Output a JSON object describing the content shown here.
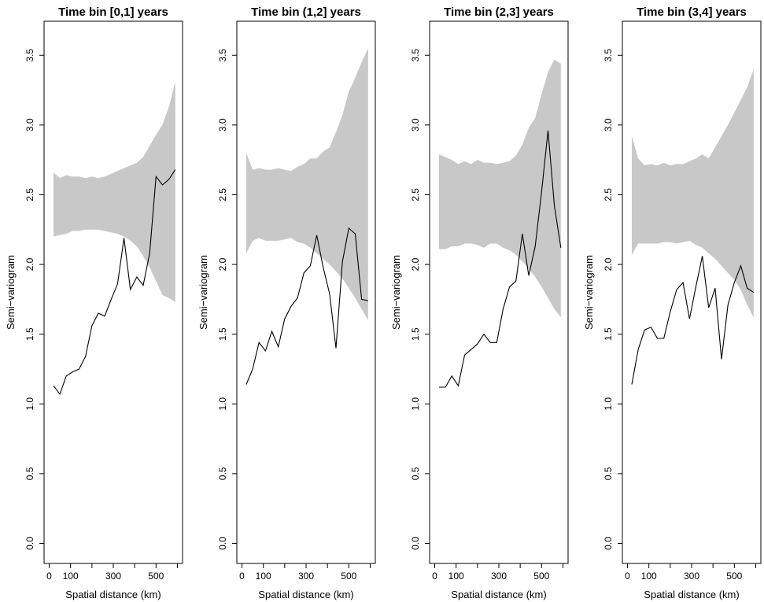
{
  "chart_data": [
    {
      "type": "line",
      "title": "Time bin [0,1] years",
      "xlabel": "Spatial distance (km)",
      "ylabel": "Semi−variogram",
      "xlim": [
        0,
        600
      ],
      "ylim": [
        0,
        3.6
      ],
      "xticks": [
        0,
        100,
        200,
        300,
        400,
        500,
        600
      ],
      "xtick_labels": [
        "0",
        "100",
        "",
        "300",
        "",
        "500",
        ""
      ],
      "yticks": [
        0,
        0.5,
        1,
        1.5,
        2,
        2.5,
        3,
        3.5
      ],
      "ytick_labels": [
        "0.0",
        "0.5",
        "1.0",
        "1.5",
        "2.0",
        "2.5",
        "3.0",
        "3.5"
      ],
      "series": [
        {
          "x": [
            20,
            50,
            80,
            110,
            140,
            170,
            200,
            230,
            260,
            290,
            320,
            350,
            380,
            410,
            440,
            470,
            500,
            530,
            560,
            590
          ],
          "y": [
            1.13,
            1.07,
            1.2,
            1.23,
            1.25,
            1.34,
            1.56,
            1.65,
            1.63,
            1.75,
            1.86,
            2.19,
            1.82,
            1.91,
            1.85,
            2.08,
            2.63,
            2.57,
            2.61,
            2.68
          ]
        }
      ],
      "envelope": {
        "x": [
          20,
          50,
          80,
          110,
          140,
          170,
          200,
          230,
          260,
          290,
          320,
          350,
          380,
          410,
          440,
          470,
          500,
          530,
          560,
          590
        ],
        "lower": [
          2.2,
          2.21,
          2.22,
          2.24,
          2.24,
          2.25,
          2.25,
          2.25,
          2.24,
          2.23,
          2.22,
          2.2,
          2.17,
          2.13,
          2.06,
          1.98,
          1.88,
          1.78,
          1.76,
          1.73
        ],
        "upper": [
          2.66,
          2.62,
          2.64,
          2.63,
          2.63,
          2.62,
          2.63,
          2.62,
          2.63,
          2.65,
          2.67,
          2.69,
          2.71,
          2.73,
          2.77,
          2.85,
          2.93,
          3.0,
          3.13,
          3.31
        ],
        "color": "#c8c8c8"
      }
    },
    {
      "type": "line",
      "title": "Time bin (1,2] years",
      "xlabel": "Spatial distance (km)",
      "ylabel": "Semi−variogram",
      "xlim": [
        0,
        600
      ],
      "ylim": [
        0,
        3.6
      ],
      "xticks": [
        0,
        100,
        200,
        300,
        400,
        500,
        600
      ],
      "xtick_labels": [
        "0",
        "100",
        "",
        "300",
        "",
        "500",
        ""
      ],
      "yticks": [
        0,
        0.5,
        1,
        1.5,
        2,
        2.5,
        3,
        3.5
      ],
      "ytick_labels": [
        "0.0",
        "0.5",
        "1.0",
        "1.5",
        "2.0",
        "2.5",
        "3.0",
        "3.5"
      ],
      "series": [
        {
          "x": [
            20,
            50,
            80,
            110,
            140,
            170,
            200,
            230,
            260,
            290,
            320,
            350,
            380,
            410,
            440,
            470,
            500,
            530,
            560,
            590
          ],
          "y": [
            1.14,
            1.25,
            1.44,
            1.38,
            1.52,
            1.41,
            1.61,
            1.7,
            1.76,
            1.94,
            1.99,
            2.21,
            1.98,
            1.79,
            1.4,
            2.02,
            2.26,
            2.22,
            1.75,
            1.74
          ]
        }
      ],
      "envelope": {
        "x": [
          20,
          50,
          80,
          110,
          140,
          170,
          200,
          230,
          260,
          290,
          320,
          350,
          380,
          410,
          440,
          470,
          500,
          530,
          560,
          590
        ],
        "lower": [
          2.08,
          2.17,
          2.19,
          2.17,
          2.17,
          2.17,
          2.18,
          2.19,
          2.16,
          2.15,
          2.12,
          2.08,
          2.04,
          2.0,
          1.95,
          1.9,
          1.83,
          1.76,
          1.68,
          1.6
        ],
        "upper": [
          2.8,
          2.68,
          2.69,
          2.68,
          2.68,
          2.69,
          2.68,
          2.67,
          2.7,
          2.72,
          2.76,
          2.76,
          2.81,
          2.84,
          2.95,
          3.07,
          3.24,
          3.34,
          3.45,
          3.55
        ],
        "color": "#c8c8c8"
      }
    },
    {
      "type": "line",
      "title": "Time bin (2,3] years",
      "xlabel": "Spatial distance (km)",
      "ylabel": "Semi−variogram",
      "xlim": [
        0,
        600
      ],
      "ylim": [
        0,
        3.6
      ],
      "xticks": [
        0,
        100,
        200,
        300,
        400,
        500,
        600
      ],
      "xtick_labels": [
        "0",
        "100",
        "",
        "300",
        "",
        "500",
        ""
      ],
      "yticks": [
        0,
        0.5,
        1,
        1.5,
        2,
        2.5,
        3,
        3.5
      ],
      "ytick_labels": [
        "0.0",
        "0.5",
        "1.0",
        "1.5",
        "2.0",
        "2.5",
        "3.0",
        "3.5"
      ],
      "series": [
        {
          "x": [
            20,
            50,
            80,
            110,
            140,
            170,
            200,
            230,
            260,
            290,
            320,
            350,
            380,
            410,
            440,
            470,
            500,
            530,
            560,
            590
          ],
          "y": [
            1.12,
            1.12,
            1.2,
            1.13,
            1.35,
            1.39,
            1.43,
            1.5,
            1.44,
            1.44,
            1.68,
            1.84,
            1.88,
            2.22,
            1.92,
            2.13,
            2.52,
            2.96,
            2.42,
            2.12
          ]
        }
      ],
      "envelope": {
        "x": [
          20,
          50,
          80,
          110,
          140,
          170,
          200,
          230,
          260,
          290,
          320,
          350,
          380,
          410,
          440,
          470,
          500,
          530,
          560,
          590
        ],
        "lower": [
          2.11,
          2.11,
          2.13,
          2.13,
          2.15,
          2.15,
          2.14,
          2.12,
          2.15,
          2.15,
          2.12,
          2.1,
          2.07,
          2.02,
          1.97,
          1.91,
          1.84,
          1.76,
          1.68,
          1.62
        ],
        "upper": [
          2.79,
          2.77,
          2.75,
          2.72,
          2.74,
          2.72,
          2.75,
          2.73,
          2.73,
          2.72,
          2.73,
          2.74,
          2.78,
          2.86,
          2.98,
          3.05,
          3.22,
          3.38,
          3.47,
          3.44
        ],
        "color": "#c8c8c8"
      }
    },
    {
      "type": "line",
      "title": "Time bin (3,4] years",
      "xlabel": "Spatial distance (km)",
      "ylabel": "Semi−variogram",
      "xlim": [
        0,
        600
      ],
      "ylim": [
        0,
        3.6
      ],
      "xticks": [
        0,
        100,
        200,
        300,
        400,
        500,
        600
      ],
      "xtick_labels": [
        "0",
        "100",
        "",
        "300",
        "",
        "500",
        ""
      ],
      "yticks": [
        0,
        0.5,
        1,
        1.5,
        2,
        2.5,
        3,
        3.5
      ],
      "ytick_labels": [
        "0.0",
        "0.5",
        "1.0",
        "1.5",
        "2.0",
        "2.5",
        "3.0",
        "3.5"
      ],
      "series": [
        {
          "x": [
            20,
            50,
            80,
            110,
            140,
            170,
            200,
            230,
            260,
            290,
            320,
            350,
            380,
            410,
            440,
            470,
            500,
            530,
            560,
            590
          ],
          "y": [
            1.14,
            1.39,
            1.53,
            1.55,
            1.47,
            1.47,
            1.66,
            1.82,
            1.87,
            1.61,
            1.84,
            2.06,
            1.69,
            1.83,
            1.32,
            1.71,
            1.87,
            1.99,
            1.83,
            1.8
          ]
        }
      ],
      "envelope": {
        "x": [
          20,
          50,
          80,
          110,
          140,
          170,
          200,
          230,
          260,
          290,
          320,
          350,
          380,
          410,
          440,
          470,
          500,
          530,
          560,
          590
        ],
        "lower": [
          2.07,
          2.15,
          2.15,
          2.15,
          2.15,
          2.16,
          2.16,
          2.15,
          2.16,
          2.17,
          2.14,
          2.12,
          2.08,
          2.04,
          1.99,
          1.94,
          1.89,
          1.82,
          1.71,
          1.62
        ],
        "upper": [
          2.92,
          2.76,
          2.71,
          2.72,
          2.71,
          2.73,
          2.71,
          2.72,
          2.72,
          2.74,
          2.76,
          2.79,
          2.76,
          2.84,
          2.92,
          3.0,
          3.09,
          3.18,
          3.27,
          3.4
        ],
        "color": "#c8c8c8"
      }
    }
  ]
}
